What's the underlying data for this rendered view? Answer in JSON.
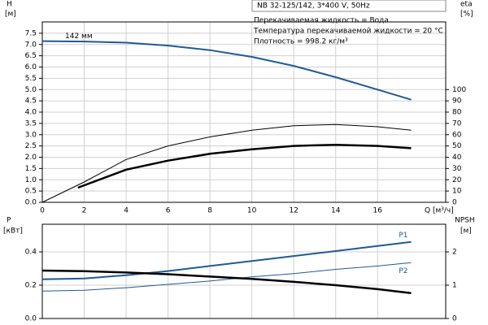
{
  "chart_data": [
    {
      "type": "line",
      "title": "NB 32-125/142, 3*400 V, 50Hz",
      "annotations": [
        "Перекачиваемая жидкость = Вода",
        "Температура перекачиваемой жидкости = 20 °C",
        "Плотность = 998.2 кг/м³"
      ],
      "y_label": "H",
      "y_unit": "[м]",
      "y2_label": "eta",
      "y2_unit": "[%]",
      "x_label": "Q [м³/ч]",
      "xlim": [
        0,
        19.25
      ],
      "xticks": [
        0,
        2,
        4,
        6,
        8,
        10,
        12,
        14,
        16
      ],
      "ylim": [
        0,
        8
      ],
      "yticks": [
        {
          "value": 0,
          "label": "0.0"
        },
        0.5,
        {
          "value": 1,
          "label": "1.0"
        },
        1.5,
        {
          "value": 2,
          "label": "2.0"
        },
        2.5,
        {
          "value": 3,
          "label": "3.0"
        },
        3.5,
        {
          "value": 4,
          "label": "4.0"
        },
        4.5,
        {
          "value": 5,
          "label": "5.0"
        },
        5.5,
        {
          "value": 6,
          "label": "6.0"
        },
        6.5,
        {
          "value": 7,
          "label": "7.0"
        },
        7.5
      ],
      "y2lim": [
        0,
        160
      ],
      "y2ticks": [
        0,
        10,
        20,
        30,
        40,
        50,
        60,
        70,
        80,
        90,
        100
      ],
      "grid": true,
      "series": [
        {
          "name": "142 мм",
          "color": "#1f5a96",
          "line_width": 2,
          "x": [
            0,
            2,
            4,
            6,
            8,
            10,
            12,
            14,
            16,
            17.6
          ],
          "values": [
            7.15,
            7.13,
            7.08,
            6.95,
            6.75,
            6.45,
            6.05,
            5.55,
            5.0,
            4.55
          ]
        },
        {
          "color": "#000000",
          "line_width": 1,
          "axis": "y2",
          "x": [
            0,
            2,
            4,
            6,
            8,
            10,
            12,
            14,
            16,
            17.6
          ],
          "values": [
            0,
            18,
            38,
            50,
            58,
            64,
            68,
            69,
            67,
            64
          ]
        },
        {
          "color": "#000000",
          "line_width": 2.5,
          "axis": "y2",
          "x": [
            1.7,
            4,
            6,
            8,
            10,
            12,
            14,
            16,
            17.6
          ],
          "values": [
            13,
            29,
            37,
            43,
            47,
            50,
            51,
            50,
            48
          ]
        }
      ]
    },
    {
      "type": "line",
      "y_label": "P",
      "y_unit": "[кВт]",
      "y2_label": "NPSH",
      "y2_unit": "[м]",
      "xlim": [
        0,
        19.25
      ],
      "ylim": [
        0,
        0.566
      ],
      "yticks": [
        {
          "value": 0,
          "label": "0.0"
        },
        0.2,
        0.4
      ],
      "y2lim": [
        0,
        2.83
      ],
      "y2ticks": [
        0,
        1,
        2
      ],
      "grid": true,
      "series": [
        {
          "name": "P1",
          "color": "#1f5a96",
          "line_width": 2,
          "x": [
            0,
            2,
            4,
            6,
            8,
            10,
            12,
            14,
            16,
            17.6
          ],
          "values": [
            0.235,
            0.24,
            0.26,
            0.285,
            0.315,
            0.345,
            0.375,
            0.405,
            0.435,
            0.46
          ]
        },
        {
          "name": "P2",
          "color": "#1f5a96",
          "line_width": 1,
          "x": [
            0,
            2,
            4,
            6,
            8,
            10,
            12,
            14,
            16,
            17.6
          ],
          "values": [
            0.165,
            0.17,
            0.185,
            0.205,
            0.225,
            0.25,
            0.27,
            0.295,
            0.315,
            0.335
          ]
        },
        {
          "color": "#000000",
          "line_width": 2.5,
          "axis": "y2",
          "x": [
            0,
            2,
            4,
            6,
            8,
            10,
            12,
            14,
            16,
            17.6
          ],
          "values": [
            1.44,
            1.42,
            1.38,
            1.33,
            1.26,
            1.19,
            1.1,
            1.0,
            0.88,
            0.76
          ]
        }
      ]
    }
  ]
}
